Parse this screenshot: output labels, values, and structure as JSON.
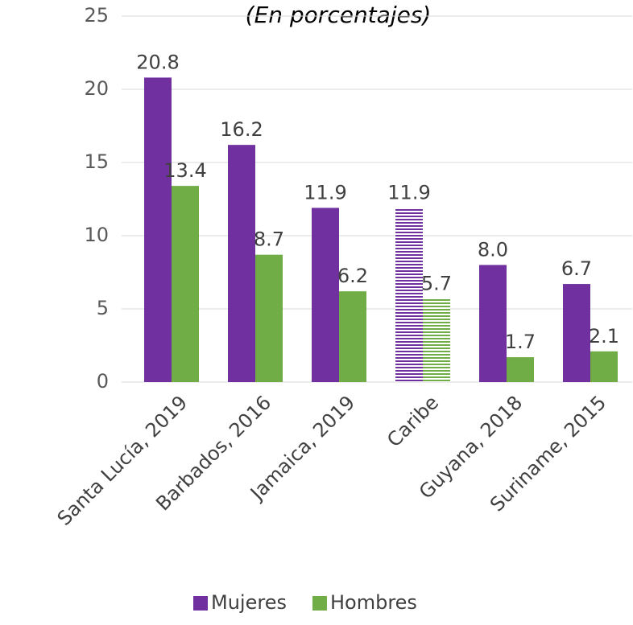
{
  "chart_data": {
    "type": "bar",
    "subtitle": "(En porcentajes)",
    "categories": [
      "Santa Lucía, 2019",
      "Barbados, 2016",
      "Jamaica, 2019",
      "Caribe",
      "Guyana, 2018",
      "Suriname, 2015"
    ],
    "series": [
      {
        "name": "Mujeres",
        "color": "#7030a0",
        "values": [
          20.8,
          16.2,
          11.9,
          11.9,
          8.0,
          6.7
        ],
        "value_labels": [
          "20.8",
          "16.2",
          "11.9",
          "11.9",
          "8.0",
          "6.7"
        ]
      },
      {
        "name": "Hombres",
        "color": "#70ad47",
        "values": [
          13.4,
          8.7,
          6.2,
          5.7,
          1.7,
          2.1
        ],
        "value_labels": [
          "13.4",
          "8.7",
          "6.2",
          "5.7",
          "1.7",
          "2.1"
        ]
      }
    ],
    "hatch_category": "Caribe",
    "ylim": [
      0,
      25
    ],
    "yticks": [
      0,
      5,
      10,
      15,
      20,
      25
    ],
    "grid": true,
    "legend": "bottom"
  }
}
